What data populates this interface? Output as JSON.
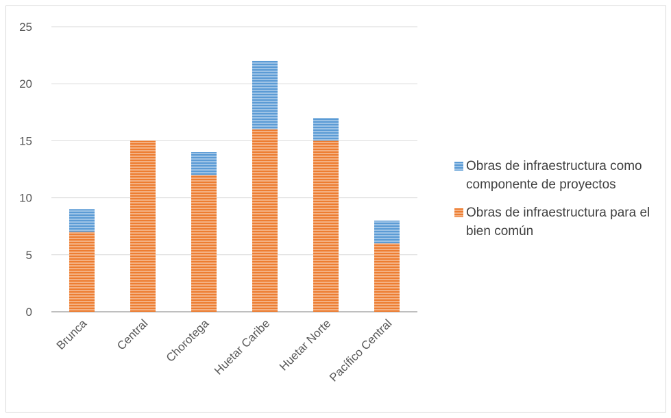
{
  "chart_data": {
    "type": "bar",
    "stacked": true,
    "categories": [
      "Brunca",
      "Central",
      "Chorotega",
      "Huetar Caribe",
      "Huetar Norte",
      "Pacífico Central"
    ],
    "series": [
      {
        "name": "Obras de infraestructura para el bien común",
        "values": [
          7,
          15,
          12,
          16,
          15,
          6
        ],
        "color": "#ed7d31"
      },
      {
        "name": "Obras de infraestructura como componente de proyectos",
        "values": [
          2,
          0,
          2,
          6,
          2,
          2
        ],
        "color": "#5b9bd5"
      }
    ],
    "y_ticks": [
      "0",
      "5",
      "10",
      "15",
      "20",
      "25"
    ],
    "ylim": [
      0,
      25
    ],
    "grid": true,
    "legend_position": "right"
  }
}
